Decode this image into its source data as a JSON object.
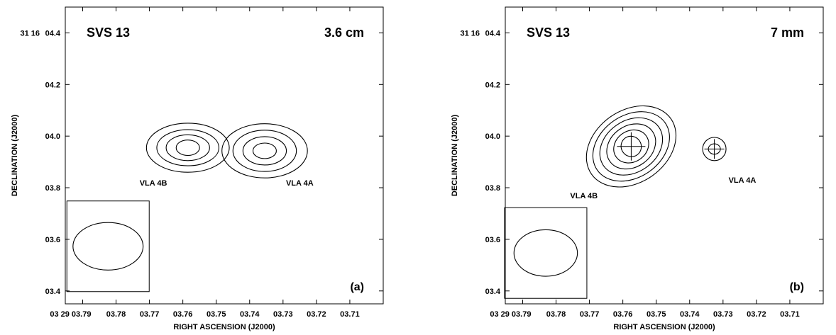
{
  "chart_data": [
    {
      "type": "contour",
      "object_name": "SVS 13",
      "wavelength": "3.6 cm",
      "panel_tag": "(a)",
      "xlabel": "RIGHT ASCENSION (J2000)",
      "ylabel": "DECLINATION (J2000)",
      "x_ticks": [
        "03 29 03.79",
        "03.78",
        "03.77",
        "03.76",
        "03.75",
        "03.74",
        "03.73",
        "03.72",
        "03.71"
      ],
      "y_ticks": [
        "31 16 04.4",
        "04.2",
        "04.0",
        "03.8",
        "03.6",
        "03.4"
      ],
      "ra_range_s": [
        3.7952,
        3.7
      ],
      "dec_range_arcsec": [
        3.35,
        4.5
      ],
      "sources": [
        {
          "label": "VLA 4B",
          "ra_s": 3.7585,
          "dec_arcsec": 3.955,
          "contour_semi_axes": [
            [
              0.0035,
              0.03
            ],
            [
              0.0065,
              0.05
            ],
            [
              0.0093,
              0.07
            ],
            [
              0.0124,
              0.095
            ]
          ]
        },
        {
          "label": "VLA 4A",
          "ra_s": 3.7355,
          "dec_arcsec": 3.943,
          "contour_semi_axes": [
            [
              0.0035,
              0.03
            ],
            [
              0.0065,
              0.055
            ],
            [
              0.0095,
              0.08
            ],
            [
              0.0128,
              0.105
            ]
          ]
        }
      ],
      "beam": {
        "ra_s": 3.7824,
        "dec_arcsec": 3.573,
        "semi_axes": [
          0.0105,
          0.092
        ]
      }
    },
    {
      "type": "contour",
      "object_name": "SVS 13",
      "wavelength": "7 mm",
      "panel_tag": "(b)",
      "xlabel": "RIGHT ASCENSION (J2000)",
      "ylabel": "DECLINATION (J2000)",
      "x_ticks": [
        "03 29 03.79",
        "03.78",
        "03.77",
        "03.76",
        "03.75",
        "03.74",
        "03.73",
        "03.72",
        "03.71"
      ],
      "y_ticks": [
        "31 16 04.4",
        "04.2",
        "04.0",
        "03.8",
        "03.6",
        "03.4"
      ],
      "ra_range_s": [
        3.7952,
        3.7
      ],
      "dec_range_arcsec": [
        3.35,
        4.5
      ],
      "sources": [
        {
          "label": "VLA 4B",
          "ra_s": 3.7575,
          "dec_arcsec": 3.96,
          "contour_semi_axes": [
            [
              0.003,
              0.04
            ],
            [
              0.0055,
              0.06
            ],
            [
              0.0078,
              0.08
            ],
            [
              0.0101,
              0.1
            ],
            [
              0.0124,
              0.12
            ],
            [
              0.0145,
              0.14
            ]
          ]
        },
        {
          "label": "VLA 4A",
          "ra_s": 3.7326,
          "dec_arcsec": 3.95,
          "contour_semi_axes": [
            [
              0.0018,
              0.02
            ],
            [
              0.0035,
              0.045
            ]
          ]
        }
      ],
      "beam": {
        "ra_s": 3.7831,
        "dec_arcsec": 3.547,
        "semi_axes": [
          0.0095,
          0.09
        ]
      }
    }
  ]
}
